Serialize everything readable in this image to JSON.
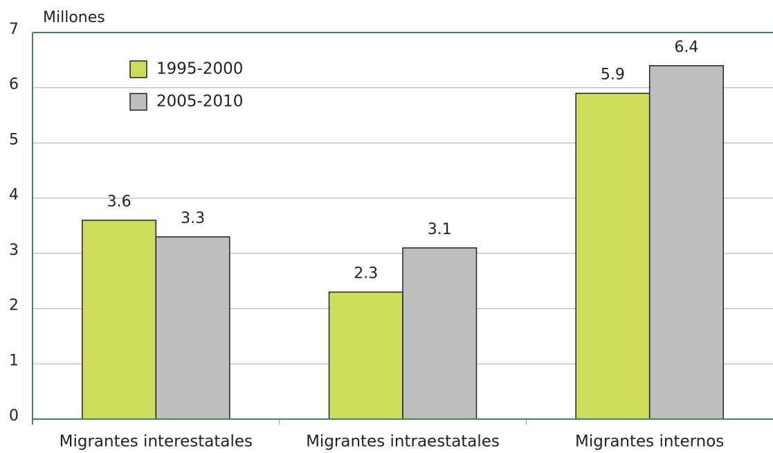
{
  "chart_data": {
    "type": "bar",
    "y_label": "Millones",
    "categories": [
      "Migrantes interestatales",
      "Migrantes intraestatales",
      "Migrantes internos"
    ],
    "series": [
      {
        "name": "1995-2000",
        "color": "#cddc5a",
        "values": [
          3.6,
          2.3,
          5.9
        ]
      },
      {
        "name": "2005-2010",
        "color": "#bcbec0",
        "values": [
          3.3,
          3.1,
          6.4
        ]
      }
    ],
    "ylim": [
      0,
      7
    ],
    "yticks": [
      0,
      1,
      2,
      3,
      4,
      5,
      6,
      7
    ],
    "grid": true,
    "legend": "top-left"
  }
}
